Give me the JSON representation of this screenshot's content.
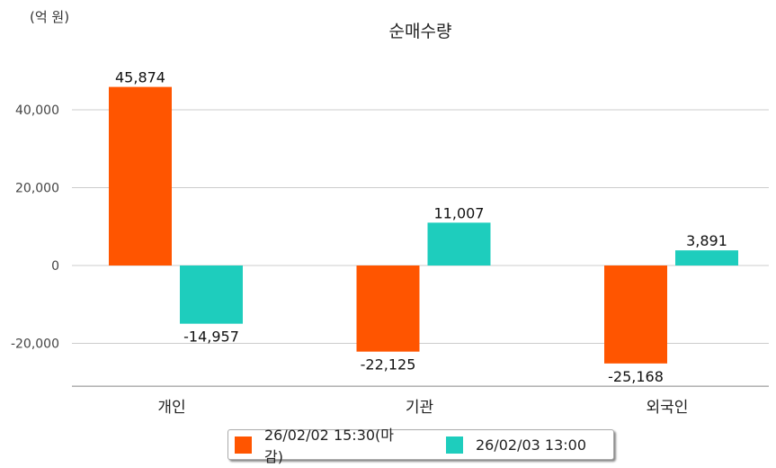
{
  "chart_data": {
    "type": "bar",
    "title": "순매수량",
    "unit_label": "(억 원)",
    "categories": [
      "개인",
      "기관",
      "외국인"
    ],
    "series": [
      {
        "name": "26/02/02 15:30(마감)",
        "color": "#ff5500",
        "values": [
          45874,
          -22125,
          -25168
        ],
        "labels": [
          "45,874",
          "-22,125",
          "-25,168"
        ]
      },
      {
        "name": "26/02/03 13:00",
        "color": "#1ecdbd",
        "values": [
          -14957,
          11007,
          3891
        ],
        "labels": [
          "-14,957",
          "11,007",
          "3,891"
        ]
      }
    ],
    "yticks": [
      40000,
      20000,
      0,
      -20000
    ],
    "ytick_labels": [
      "40,000",
      "20,000",
      "0",
      "-20,000"
    ],
    "ylim": [
      -31000,
      56000
    ],
    "grid": true,
    "legend": "bottom"
  }
}
